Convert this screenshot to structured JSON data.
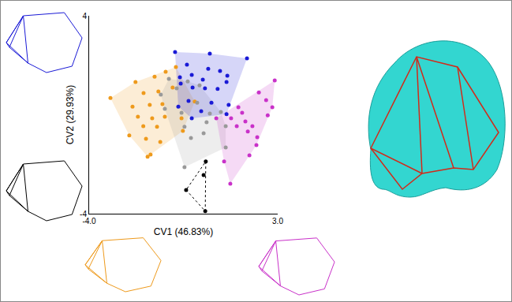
{
  "chart_data": {
    "type": "scatter",
    "xlabel": "CV1 (46.83%)",
    "ylabel": "CV2 (29.93%)",
    "xlim": [
      -4,
      3
    ],
    "ylim": [
      -4,
      4
    ],
    "xticks": [
      {
        "value": -4,
        "label": "-4.0"
      },
      {
        "value": 3,
        "label": "3.0"
      }
    ],
    "yticks": [
      4,
      -4
    ],
    "grid": false,
    "series": [
      {
        "color": "#ee9a1c",
        "x": [
          -3.21,
          -2.28,
          -1.57,
          -1.16,
          -0.78,
          -1.98,
          -1.43,
          -0.9,
          -2.39,
          -1.75,
          -1.28,
          -2.19,
          -1.66,
          -1.19,
          -0.57,
          -1.99,
          -1.48,
          -2.51,
          -1.89,
          -1.36,
          -1.72,
          -1.83,
          -0.52,
          -0.08
        ],
        "y": [
          0.68,
          1.32,
          1.54,
          1.74,
          1.93,
          0.88,
          0.94,
          1.1,
          0.33,
          0.4,
          0.43,
          -0.08,
          -0.14,
          -0.08,
          -0.14,
          -0.46,
          -0.49,
          -0.84,
          -0.97,
          -1.1,
          -1.61,
          -1.7,
          -0.65,
          0.53
        ]
      },
      {
        "color": "#999999",
        "x": [
          -1.34,
          -1.04,
          -0.75,
          -0.34,
          0.1,
          -1.19,
          -0.57,
          0.01,
          -0.46,
          0.48,
          0.36,
          1.07,
          -0.22,
          0.89,
          -0.46,
          1.07,
          0.25
        ],
        "y": [
          0.81,
          1.45,
          1.07,
          1.35,
          1.19,
          0.24,
          0.08,
          0.49,
          -0.49,
          0.05,
          -0.3,
          -0.46,
          -0.94,
          0.11,
          -2.12,
          -1.32,
          -0.75
        ]
      },
      {
        "color": "#1a1ad6",
        "x": [
          -0.81,
          0.48,
          1.86,
          -0.37,
          0.42,
          0.86,
          -0.19,
          -0.63,
          0.22,
          1.13,
          1.1,
          -0.6,
          -0.16,
          0.3,
          0.77,
          -0.31,
          0.54,
          1.18,
          -0.69,
          0.16,
          1.1,
          -0.19
        ],
        "y": [
          2.53,
          2.47,
          2.28,
          2.02,
          1.86,
          1.77,
          1.61,
          1.51,
          1.42,
          1.58,
          1.32,
          1.26,
          1.1,
          1.07,
          1.04,
          0.56,
          0.49,
          0.4,
          0.33,
          0.14,
          0.02,
          -0.14
        ]
      },
      {
        "color": "#c931c9",
        "x": [
          2.89,
          2.3,
          2.57,
          2.8,
          2.63,
          1.8,
          2.06,
          1.48,
          1.54,
          1.27,
          0.72,
          1.89,
          2.24,
          2.21,
          1.95,
          1.24,
          1.01,
          1.68
        ],
        "y": [
          1.39,
          0.9,
          0.59,
          0.3,
          -0.02,
          -0.27,
          -0.46,
          -0.46,
          0.3,
          -0.14,
          -0.14,
          -0.68,
          -0.91,
          -1.23,
          -1.64,
          -2.79,
          -1.89,
          0.08
        ]
      },
      {
        "color": "#000000",
        "line_style": "dotted",
        "x": [
          0.33,
          0.25,
          -0.4,
          0.31
        ],
        "y": [
          -1.89,
          -2.44,
          -3.04,
          -3.9
        ]
      }
    ]
  }
}
